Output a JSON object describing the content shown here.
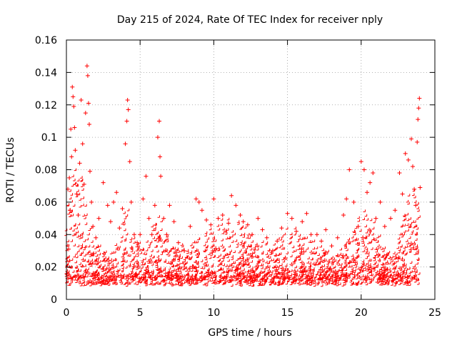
{
  "chart_data": {
    "type": "scatter",
    "title": "Day 215 of 2024, Rate Of TEC Index for receiver nply",
    "xlabel": "GPS time / hours",
    "ylabel": "ROTI / TECUs",
    "xlim": [
      0,
      25
    ],
    "ylim": [
      0,
      0.16
    ],
    "grid": true,
    "x_ticks": [
      0,
      5,
      10,
      15,
      20,
      25
    ],
    "x_tick_labels": [
      "0",
      "5",
      "10",
      "15",
      "20",
      "25"
    ],
    "y_ticks": [
      0,
      0.02,
      0.04,
      0.06,
      0.08,
      0.1,
      0.12,
      0.14,
      0.16
    ],
    "y_tick_labels": [
      "0",
      "0.02",
      "0.04",
      "0.06",
      "0.08",
      "0.1",
      "0.12",
      "0.14",
      "0.16"
    ],
    "marker": "+",
    "series_color": "#ff0000",
    "series": [
      {
        "name": "ROTI",
        "points": [
          [
            0.1,
            0.068
          ],
          [
            0.15,
            0.031
          ],
          [
            0.2,
            0.075
          ],
          [
            0.25,
            0.055
          ],
          [
            0.3,
            0.105
          ],
          [
            0.35,
            0.088
          ],
          [
            0.4,
            0.131
          ],
          [
            0.45,
            0.125
          ],
          [
            0.5,
            0.119
          ],
          [
            0.55,
            0.106
          ],
          [
            0.6,
            0.092
          ],
          [
            0.7,
            0.065
          ],
          [
            0.8,
            0.052
          ],
          [
            0.9,
            0.084
          ],
          [
            1.0,
            0.123
          ],
          [
            1.1,
            0.096
          ],
          [
            1.2,
            0.071
          ],
          [
            1.3,
            0.115
          ],
          [
            1.4,
            0.144
          ],
          [
            1.45,
            0.138
          ],
          [
            1.5,
            0.121
          ],
          [
            1.55,
            0.108
          ],
          [
            1.6,
            0.079
          ],
          [
            1.7,
            0.06
          ],
          [
            1.8,
            0.045
          ],
          [
            2.0,
            0.038
          ],
          [
            2.2,
            0.05
          ],
          [
            2.5,
            0.072
          ],
          [
            2.8,
            0.058
          ],
          [
            3.0,
            0.048
          ],
          [
            3.2,
            0.06
          ],
          [
            3.4,
            0.066
          ],
          [
            3.6,
            0.044
          ],
          [
            3.8,
            0.056
          ],
          [
            4.0,
            0.096
          ],
          [
            4.1,
            0.11
          ],
          [
            4.15,
            0.123
          ],
          [
            4.2,
            0.117
          ],
          [
            4.3,
            0.085
          ],
          [
            4.4,
            0.06
          ],
          [
            4.6,
            0.04
          ],
          [
            4.8,
            0.035
          ],
          [
            5.0,
            0.04
          ],
          [
            5.2,
            0.062
          ],
          [
            5.4,
            0.076
          ],
          [
            5.6,
            0.05
          ],
          [
            5.8,
            0.04
          ],
          [
            6.0,
            0.058
          ],
          [
            6.2,
            0.1
          ],
          [
            6.3,
            0.11
          ],
          [
            6.35,
            0.088
          ],
          [
            6.4,
            0.076
          ],
          [
            6.6,
            0.05
          ],
          [
            6.8,
            0.04
          ],
          [
            7.0,
            0.058
          ],
          [
            7.3,
            0.048
          ],
          [
            7.6,
            0.035
          ],
          [
            8.0,
            0.03
          ],
          [
            8.4,
            0.045
          ],
          [
            8.8,
            0.062
          ],
          [
            9.0,
            0.06
          ],
          [
            9.2,
            0.055
          ],
          [
            9.5,
            0.049
          ],
          [
            9.8,
            0.046
          ],
          [
            10.0,
            0.062
          ],
          [
            10.3,
            0.05
          ],
          [
            10.6,
            0.052
          ],
          [
            11.0,
            0.047
          ],
          [
            11.2,
            0.064
          ],
          [
            11.5,
            0.058
          ],
          [
            11.8,
            0.052
          ],
          [
            12.0,
            0.048
          ],
          [
            12.3,
            0.046
          ],
          [
            12.6,
            0.04
          ],
          [
            13.0,
            0.05
          ],
          [
            13.3,
            0.043
          ],
          [
            13.6,
            0.038
          ],
          [
            14.0,
            0.03
          ],
          [
            14.3,
            0.036
          ],
          [
            14.6,
            0.044
          ],
          [
            15.0,
            0.053
          ],
          [
            15.3,
            0.05
          ],
          [
            15.6,
            0.042
          ],
          [
            16.0,
            0.048
          ],
          [
            16.3,
            0.053
          ],
          [
            16.6,
            0.04
          ],
          [
            17.0,
            0.04
          ],
          [
            17.3,
            0.036
          ],
          [
            17.6,
            0.043
          ],
          [
            18.0,
            0.033
          ],
          [
            18.4,
            0.038
          ],
          [
            18.8,
            0.052
          ],
          [
            19.0,
            0.062
          ],
          [
            19.2,
            0.08
          ],
          [
            19.5,
            0.06
          ],
          [
            19.8,
            0.045
          ],
          [
            20.0,
            0.085
          ],
          [
            20.2,
            0.08
          ],
          [
            20.4,
            0.066
          ],
          [
            20.6,
            0.072
          ],
          [
            20.8,
            0.078
          ],
          [
            21.0,
            0.05
          ],
          [
            21.3,
            0.06
          ],
          [
            21.6,
            0.045
          ],
          [
            22.0,
            0.05
          ],
          [
            22.3,
            0.055
          ],
          [
            22.6,
            0.078
          ],
          [
            22.8,
            0.065
          ],
          [
            23.0,
            0.09
          ],
          [
            23.2,
            0.086
          ],
          [
            23.4,
            0.099
          ],
          [
            23.5,
            0.082
          ],
          [
            23.6,
            0.068
          ],
          [
            23.7,
            0.058
          ],
          [
            23.8,
            0.097
          ],
          [
            23.85,
            0.111
          ],
          [
            23.9,
            0.118
          ],
          [
            23.95,
            0.124
          ],
          [
            24.0,
            0.069
          ]
        ]
      }
    ]
  }
}
